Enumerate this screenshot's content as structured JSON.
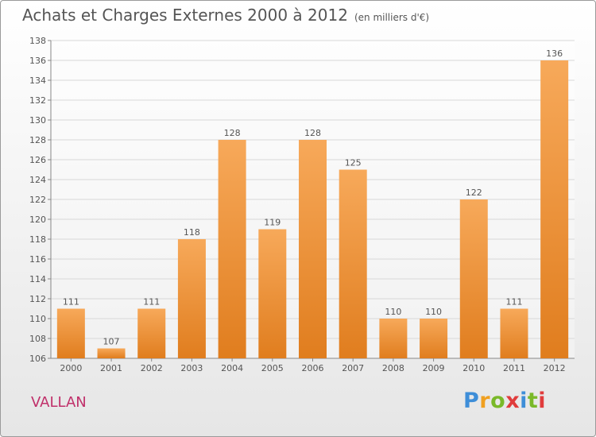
{
  "title": "Achats et Charges Externes 2000 à 2012",
  "unit": "(en milliers d'€)",
  "town": "VALLAN",
  "logo": {
    "letters": [
      "P",
      "r",
      "o",
      "x",
      "i",
      "t",
      "i"
    ],
    "colors": [
      "#3e8ed8",
      "#f0a020",
      "#7ab929",
      "#e03c3c",
      "#3e8ed8",
      "#7ab929",
      "#e03c3c"
    ]
  },
  "colors": {
    "bar_light": "#f7a95a",
    "bar_dark": "#e07d1e",
    "text": "#555555",
    "grid": "#d8d8d8"
  },
  "chart_data": {
    "type": "bar",
    "categories": [
      "2000",
      "2001",
      "2002",
      "2003",
      "2004",
      "2005",
      "2006",
      "2007",
      "2008",
      "2009",
      "2010",
      "2011",
      "2012"
    ],
    "values": [
      111,
      107,
      111,
      118,
      128,
      119,
      128,
      125,
      110,
      110,
      122,
      111,
      136
    ],
    "ylim": [
      106,
      138
    ],
    "yticks": [
      106,
      108,
      110,
      112,
      114,
      116,
      118,
      120,
      122,
      124,
      126,
      128,
      130,
      132,
      134,
      136,
      138
    ],
    "grid": true,
    "xlabel": "",
    "ylabel": ""
  }
}
